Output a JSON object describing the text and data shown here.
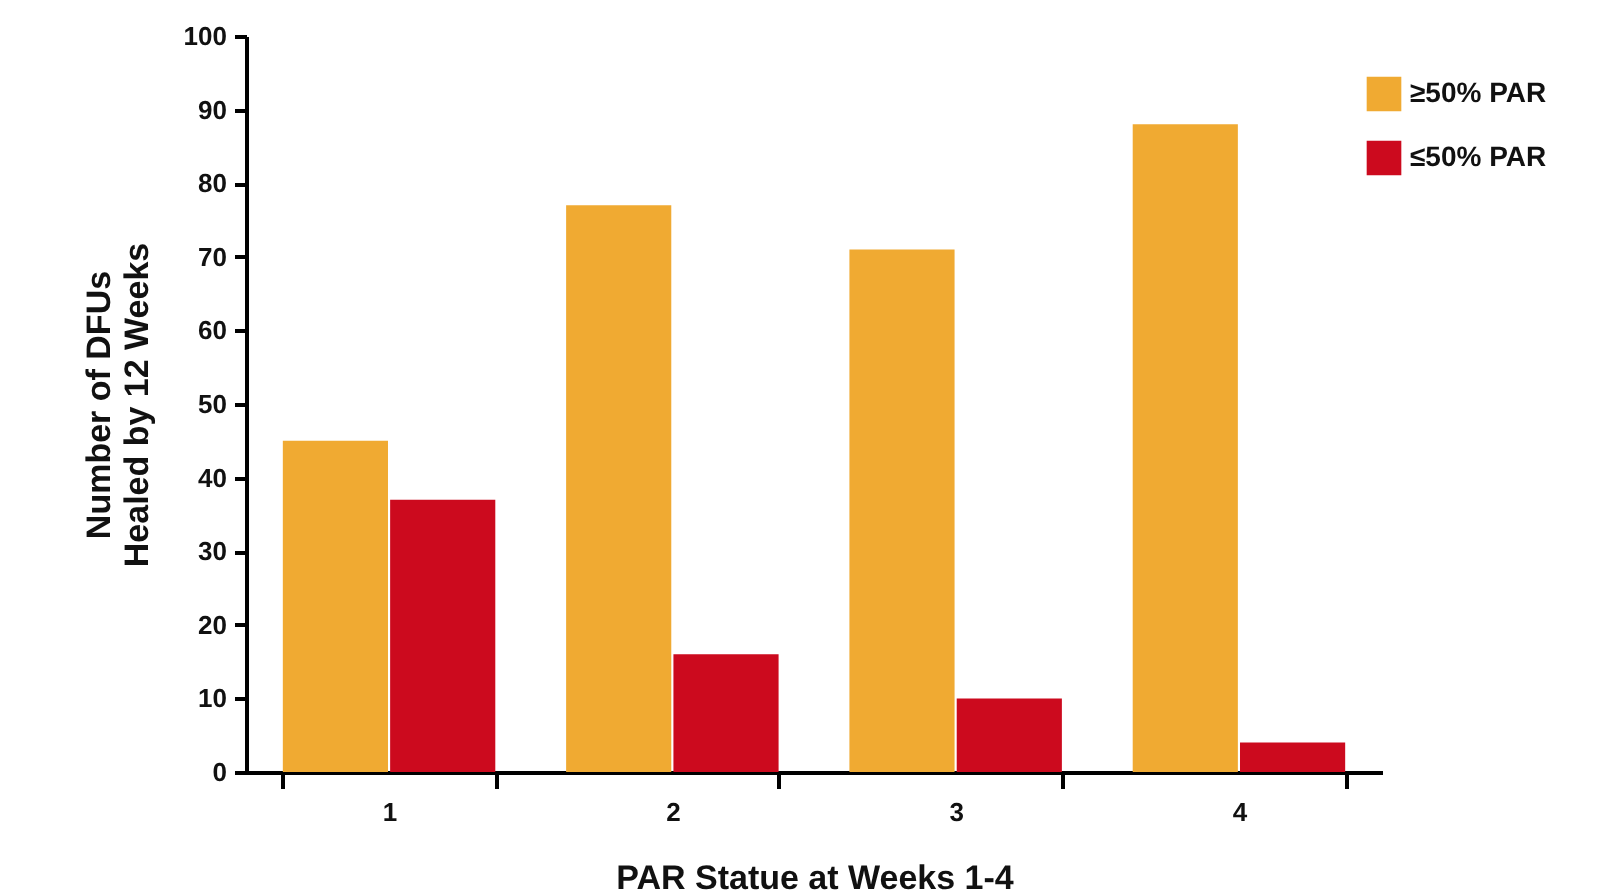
{
  "chart_data": {
    "type": "bar",
    "xlabel": "PAR Statue at Weeks 1-4",
    "ylabel": "Number of DFUs\nHealed by 12 Weeks",
    "categories": [
      "1",
      "2",
      "3",
      "4"
    ],
    "series": [
      {
        "name": "≥50% PAR",
        "color": "#f0aa32",
        "values": [
          45,
          77,
          71,
          88
        ]
      },
      {
        "name": "≤50% PAR",
        "color": "#cc0a1e",
        "values": [
          37,
          16,
          10,
          4
        ]
      }
    ],
    "ylim": [
      0,
      100
    ],
    "yticks": [
      0,
      10,
      20,
      30,
      40,
      50,
      60,
      70,
      80,
      90,
      100
    ],
    "grid": false,
    "legend": "top right"
  }
}
